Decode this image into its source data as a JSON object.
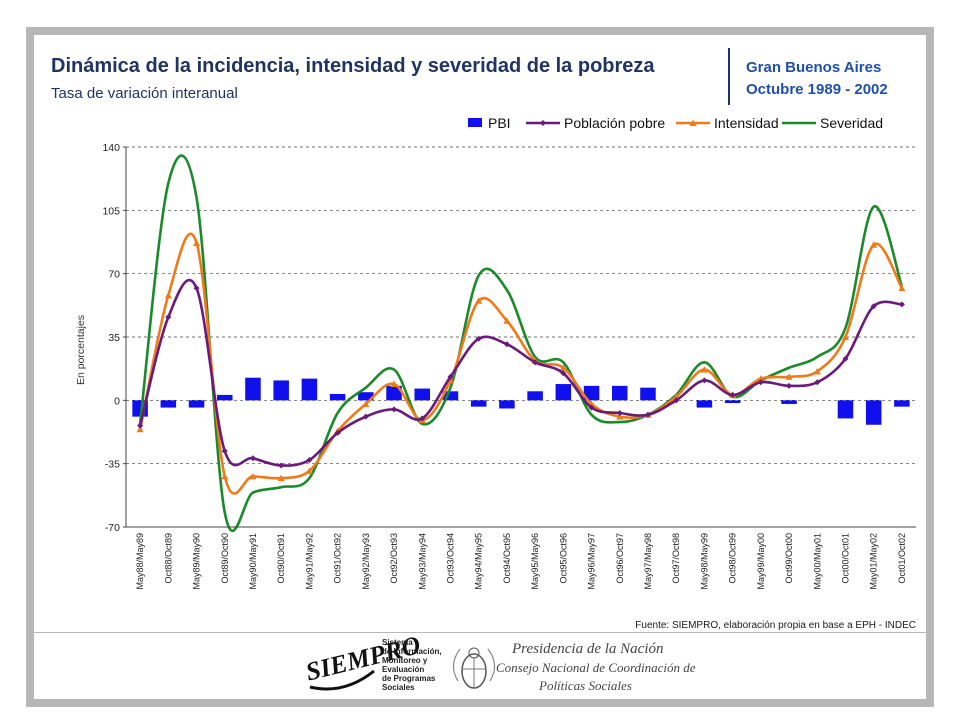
{
  "header": {
    "title": "Dinámica de la incidencia, intensidad y severidad de la pobreza",
    "subtitle": "Tasa de variación interanual",
    "region_line1": "Gran Buenos Aires",
    "region_line2": "Octubre 1989 - 2002"
  },
  "source_note": "Fuente: SIEMPRO, elaboración propia en base a EPH - INDEC",
  "logos": {
    "siempro_wordmark": "SIEMPRO",
    "siempro_caption": [
      "Sistema",
      "de Información,",
      "Monitoreo y",
      "Evaluación",
      "de Programas",
      "Sociales"
    ],
    "presidencia_line1": "Presidencia de la Nación",
    "presidencia_line2": "Consejo Nacional de Coordinación de",
    "presidencia_line3": "Políticas Sociales"
  },
  "colors": {
    "pbi": "#1010ee",
    "poblacion": "#6a1a7a",
    "intensidad": "#f07a1a",
    "severidad": "#1a8a2a",
    "title": "#1f3464",
    "region": "#1f4fa8"
  },
  "chart_data": {
    "type": "bar+line",
    "ylabel": "En porcentajes",
    "ylim": [
      -70,
      140
    ],
    "yticks": [
      -70,
      -35,
      0,
      35,
      70,
      105,
      140
    ],
    "grid": "horizontal dashed",
    "legend_position": "top-right",
    "categories": [
      "May88/May89",
      "Oct88/Oct89",
      "May89/May90",
      "Oct89/Oct90",
      "May90/May91",
      "Oct90/Oct91",
      "May91/May92",
      "Oct91/Oct92",
      "May92/May93",
      "Oct92/Oct93",
      "May93/May94",
      "Oct93/Oct94",
      "May94/May95",
      "Oct94/Oct95",
      "May95/May96",
      "Oct95/Oct96",
      "May96/May97",
      "Oct96/Oct97",
      "May97/May98",
      "Oct97/Oct98",
      "May98/May99",
      "Oct98/Oct99",
      "May99/May00",
      "Oct99/Oct00",
      "May00/May01",
      "Oct00/Oct01",
      "May01/May02",
      "Oct01/Oct02"
    ],
    "series": [
      {
        "name": "PBI",
        "kind": "bar",
        "values": [
          -9,
          -4,
          -4,
          3,
          12.5,
          11,
          12,
          3.5,
          4.5,
          8,
          6.5,
          5,
          -3.5,
          -4.5,
          5,
          9,
          8,
          8,
          7,
          0,
          -4,
          -1.5,
          0,
          -2,
          0,
          -10,
          -13.5,
          -3.5
        ]
      },
      {
        "name": "Población pobre",
        "kind": "line",
        "values": [
          -14,
          46,
          62,
          -28,
          -32,
          -36,
          -33,
          -18,
          -9,
          -5,
          -10,
          13,
          34,
          31,
          21,
          15,
          -4,
          -7,
          -8,
          0,
          11,
          3,
          10,
          8,
          10,
          23,
          52,
          53
        ]
      },
      {
        "name": "Intensidad",
        "kind": "line",
        "values": [
          -16,
          58,
          87,
          -42,
          -42,
          -43,
          -39,
          -17,
          -2,
          9,
          -11,
          11,
          55,
          44,
          22,
          18,
          -2,
          -9,
          -8,
          2,
          17,
          3,
          12,
          13,
          16,
          35,
          86,
          62
        ]
      },
      {
        "name": "Severidad",
        "kind": "line",
        "values": [
          -13,
          120,
          112,
          -62,
          -51,
          -48,
          -43,
          -7,
          7,
          17,
          -13,
          7,
          69,
          61,
          24,
          21,
          -8,
          -12,
          -8,
          3,
          21,
          2,
          11,
          18,
          24,
          40,
          107,
          63
        ]
      }
    ]
  }
}
